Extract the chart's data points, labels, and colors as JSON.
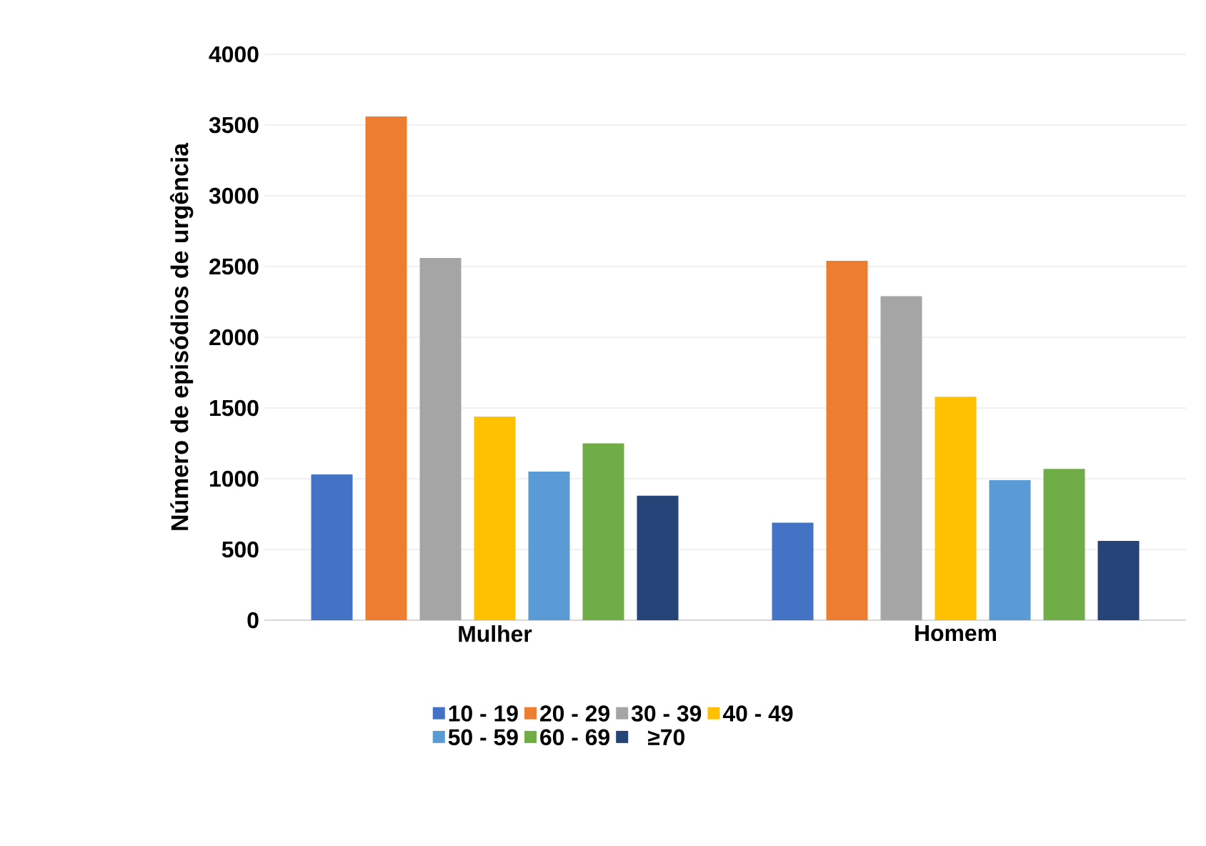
{
  "chart_data": {
    "type": "bar",
    "ylabel": "Número de episódios de urgência",
    "categories": [
      "Mulher",
      "Homem"
    ],
    "series": [
      {
        "name": "10 - 19",
        "color": "#4472c4",
        "values": [
          1030,
          690
        ]
      },
      {
        "name": "20 - 29",
        "color": "#ed7d31",
        "values": [
          3560,
          2540
        ]
      },
      {
        "name": "30 - 39",
        "color": "#a5a5a5",
        "values": [
          2560,
          2290
        ]
      },
      {
        "name": "40 - 49",
        "color": "#ffc000",
        "values": [
          1440,
          1580
        ]
      },
      {
        "name": "50 - 59",
        "color": "#5b9bd5",
        "values": [
          1050,
          990
        ]
      },
      {
        "name": "60 - 69",
        "color": "#70ad47",
        "values": [
          1250,
          1070
        ]
      },
      {
        "name": "≥70",
        "color": "#264478",
        "values": [
          880,
          560
        ]
      }
    ],
    "ylim": [
      0,
      4000
    ],
    "yticks": [
      0,
      500,
      1000,
      1500,
      2000,
      2500,
      3000,
      3500,
      4000
    ],
    "grid": "y",
    "legend": "bottom"
  }
}
